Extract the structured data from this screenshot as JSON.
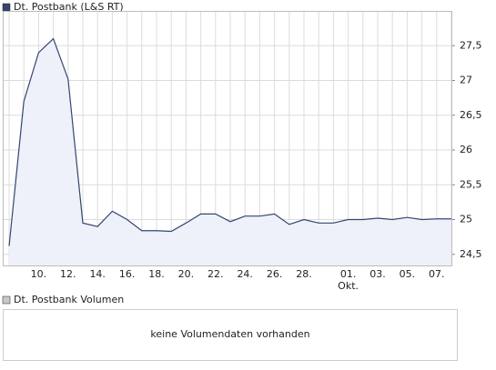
{
  "chart_data": {
    "type": "area-line",
    "categories": [
      null,
      null,
      "10.",
      null,
      "12.",
      null,
      "14.",
      null,
      "16.",
      null,
      "18.",
      null,
      "20.",
      null,
      "22.",
      null,
      "24.",
      null,
      "26.",
      null,
      "28.",
      null,
      null,
      "01.",
      null,
      "03.",
      null,
      "05.",
      null,
      "07.",
      null
    ],
    "category_sublabels": [
      null,
      null,
      null,
      null,
      null,
      null,
      null,
      null,
      null,
      null,
      null,
      null,
      null,
      null,
      null,
      null,
      null,
      null,
      null,
      null,
      null,
      null,
      null,
      "Okt.",
      null,
      null,
      null,
      null,
      null,
      null,
      null
    ],
    "series": [
      {
        "name": "Dt. Postbank (L&S RT)",
        "color": "#34466f",
        "fill": "#eef0fa",
        "values": [
          24.62,
          26.7,
          27.4,
          27.6,
          27.02,
          24.95,
          24.9,
          25.12,
          25.0,
          24.84,
          24.84,
          24.83,
          24.95,
          25.08,
          25.08,
          24.97,
          25.05,
          25.05,
          25.08,
          24.93,
          25.0,
          24.95,
          24.95,
          25.0,
          25.0,
          25.02,
          25.0,
          25.03,
          25.0,
          25.01,
          25.01
        ]
      }
    ],
    "ylim": [
      24.34,
      28.0
    ],
    "yticks": [
      {
        "value": 24.5,
        "label": "24,5"
      },
      25,
      {
        "value": 25.5,
        "label": "25,5"
      },
      26,
      {
        "value": 26.5,
        "label": "26,5"
      },
      27,
      {
        "value": 27.5,
        "label": "27,5"
      }
    ],
    "grid": true
  },
  "volume_panel": {
    "title": "Dt. Postbank Volumen",
    "message": "keine Volumendaten vorhanden"
  }
}
